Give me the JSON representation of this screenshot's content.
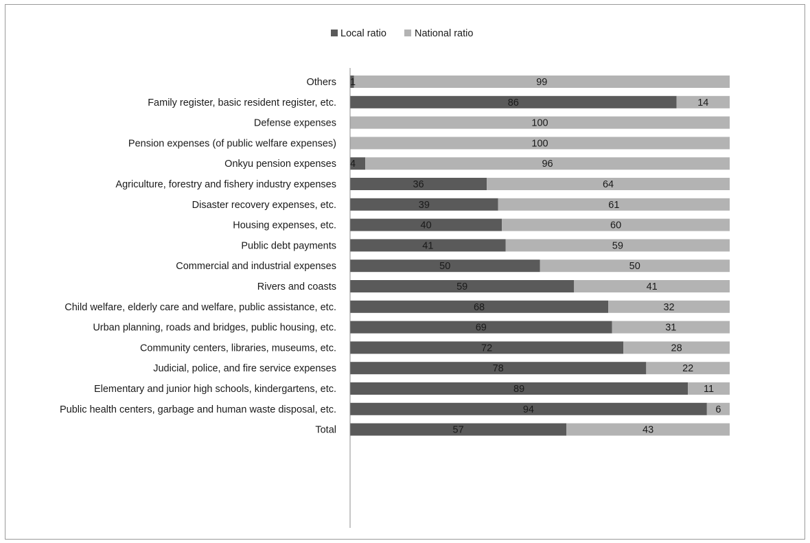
{
  "chart_data": {
    "type": "bar",
    "orientation": "horizontal",
    "stacked": true,
    "categories": [
      "Others",
      "Family register, basic resident register, etc.",
      "Defense expenses",
      "Pension expenses (of public welfare expenses)",
      "Onkyu pension expenses",
      "Agriculture, forestry and fishery industry expenses",
      "Disaster recovery expenses, etc.",
      "Housing expenses, etc.",
      "Public debt payments",
      "Commercial and industrial expenses",
      "Rivers and coasts",
      "Child welfare, elderly care and welfare, public assistance, etc.",
      "Urban planning, roads and bridges, public housing, etc.",
      "Community centers, libraries, museums, etc.",
      "Judicial, police, and fire service expenses",
      "Elementary and junior high schools, kindergartens, etc.",
      "Public health centers, garbage and human waste disposal, etc.",
      "Total"
    ],
    "series": [
      {
        "name": "Local ratio",
        "color": "#5a5a5a",
        "values": [
          1,
          86,
          0,
          0,
          4,
          36,
          39,
          40,
          41,
          50,
          59,
          68,
          69,
          72,
          78,
          89,
          94,
          57
        ]
      },
      {
        "name": "National ratio",
        "color": "#b3b3b3",
        "values": [
          99,
          14,
          100,
          100,
          96,
          64,
          61,
          60,
          59,
          50,
          41,
          32,
          31,
          28,
          22,
          11,
          6,
          43
        ]
      }
    ],
    "xlim": [
      0,
      100
    ],
    "grid": false,
    "legend": "top-center"
  }
}
